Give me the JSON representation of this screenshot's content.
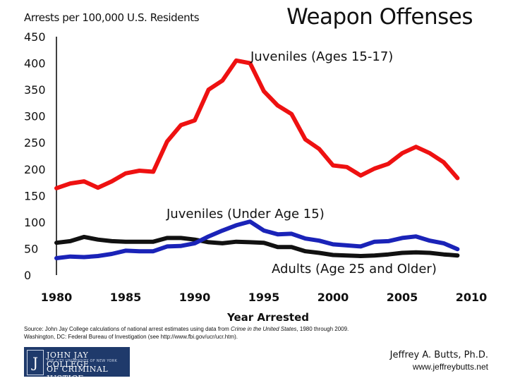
{
  "chart_data": {
    "type": "line",
    "title": "Weapon Offenses",
    "ylabel": "Arrests per 100,000 U.S. Residents",
    "xlabel": "Year Arrested",
    "xlim": [
      1980,
      2010
    ],
    "ylim": [
      0,
      450
    ],
    "x_ticks": [
      1980,
      1985,
      1990,
      1995,
      2000,
      2005,
      2010
    ],
    "y_ticks": [
      0,
      50,
      100,
      150,
      200,
      250,
      300,
      350,
      400,
      450
    ],
    "x": [
      1980,
      1981,
      1982,
      1983,
      1984,
      1985,
      1986,
      1987,
      1988,
      1989,
      1990,
      1991,
      1992,
      1993,
      1994,
      1995,
      1996,
      1997,
      1998,
      1999,
      2000,
      2001,
      2002,
      2003,
      2004,
      2005,
      2006,
      2007,
      2008,
      2009
    ],
    "series": [
      {
        "name": "Juveniles (Ages 15-17)",
        "color": "#ee1111",
        "values": [
          164,
          173,
          177,
          165,
          177,
          192,
          197,
          195,
          252,
          283,
          292,
          350,
          367,
          405,
          400,
          347,
          320,
          304,
          256,
          238,
          207,
          204,
          188,
          201,
          210,
          230,
          242,
          230,
          213,
          183
        ]
      },
      {
        "name": "Juveniles (Under Age 15)",
        "color": "#1a23b8",
        "values": [
          32,
          35,
          34,
          36,
          40,
          46,
          45,
          45,
          54,
          55,
          60,
          73,
          84,
          94,
          101,
          84,
          77,
          78,
          69,
          65,
          58,
          56,
          54,
          63,
          64,
          70,
          73,
          65,
          60,
          49
        ]
      },
      {
        "name": "Adults (Age 25 and Older)",
        "color": "#111111",
        "values": [
          61,
          64,
          72,
          67,
          64,
          63,
          63,
          63,
          70,
          70,
          67,
          62,
          60,
          63,
          62,
          61,
          53,
          53,
          45,
          42,
          38,
          37,
          36,
          37,
          39,
          42,
          43,
          42,
          39,
          37
        ]
      }
    ],
    "annotations": [
      "Juveniles (Ages 15-17)",
      "Juveniles (Under Age 15)",
      "Adults (Age 25 and Older)"
    ]
  },
  "source_text": {
    "prefix": "Source: John Jay College calculations of national arrest estimates using data from ",
    "italic": "Crime in the United States",
    "suffix": ", 1980 through 2009.",
    "line2": "Washington, DC: Federal Bureau of Investigation (see http://www.fbi.gov/ucr/ucr.htm)."
  },
  "logo": {
    "emblem": "J",
    "line1": "JOHN JAY COLLEGE",
    "line2": "THE CITY UNIVERSITY OF NEW YORK",
    "line3": "OF CRIMINAL JUSTICE"
  },
  "author": "Jeffrey A. Butts, Ph.D.",
  "website": "www.jeffreybutts.net"
}
